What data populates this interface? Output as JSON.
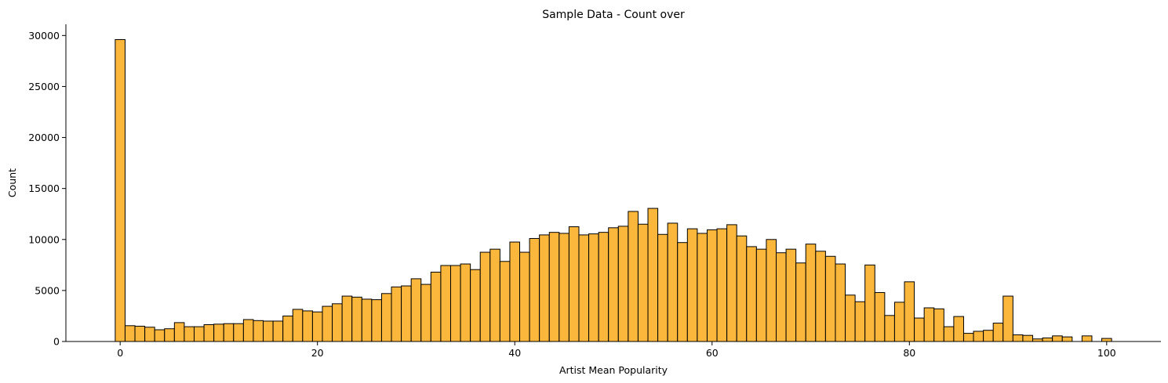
{
  "chart_data": {
    "type": "bar",
    "title": "Sample Data - Count over",
    "xlabel": "Artist Mean Popularity",
    "ylabel": "Count",
    "xlim": [
      -5.5,
      105.5
    ],
    "ylim": [
      0,
      31100
    ],
    "x_ticks": [
      0,
      20,
      40,
      60,
      80,
      100
    ],
    "y_ticks": [
      0,
      5000,
      10000,
      15000,
      20000,
      25000,
      30000
    ],
    "bin_start": -0.5,
    "bin_width": 1,
    "values": [
      29600,
      1550,
      1500,
      1400,
      1150,
      1250,
      1850,
      1450,
      1450,
      1650,
      1700,
      1750,
      1750,
      2150,
      2050,
      2000,
      2000,
      2500,
      3150,
      3000,
      2900,
      3450,
      3700,
      4450,
      4350,
      4150,
      4100,
      4700,
      5350,
      5450,
      6150,
      5600,
      6800,
      7450,
      7450,
      7600,
      7050,
      8750,
      9050,
      7850,
      9750,
      8750,
      10100,
      10450,
      10700,
      10600,
      11250,
      10450,
      10550,
      10700,
      11150,
      11300,
      12750,
      11500,
      13050,
      10500,
      11600,
      9700,
      11050,
      10600,
      10950,
      11050,
      11450,
      10350,
      9300,
      9050,
      10000,
      8700,
      9050,
      7700,
      9550,
      8850,
      8350,
      7600,
      4550,
      3900,
      7500,
      4800,
      2550,
      3850,
      5850,
      2300,
      3300,
      3200,
      1450,
      2450,
      800,
      1000,
      1100,
      1800,
      4450,
      650,
      600,
      250,
      350,
      550,
      450,
      0,
      550,
      0,
      300
    ],
    "colors": {
      "bar_fill": "#fbb73c",
      "bar_edge": "#000000"
    },
    "grid": false
  }
}
